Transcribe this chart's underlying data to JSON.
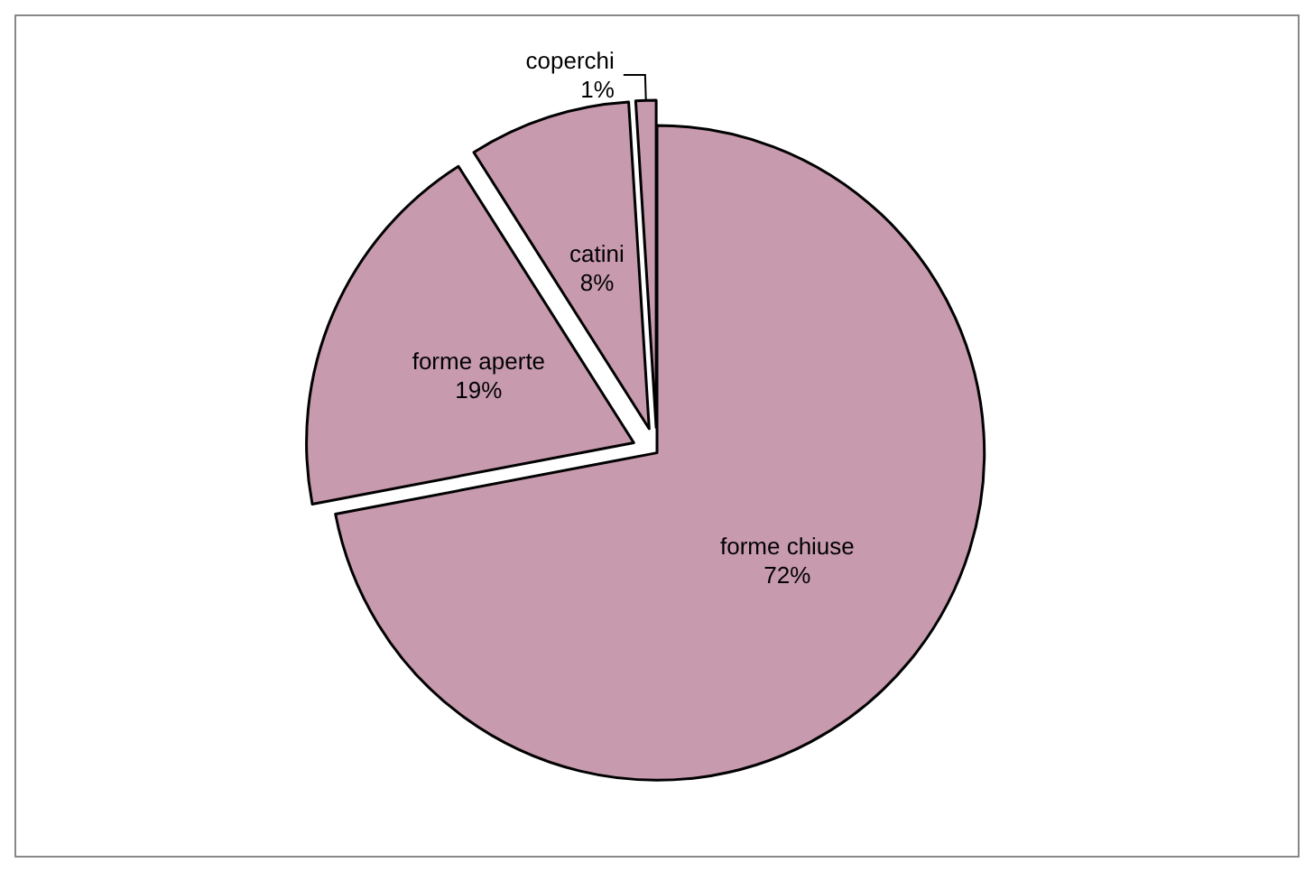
{
  "chart_data": {
    "type": "pie",
    "categories": [
      "forme chiuse",
      "forme aperte",
      "catini",
      "coperchi"
    ],
    "values": [
      72,
      19,
      8,
      1
    ],
    "value_labels": [
      "72%",
      "19%",
      "8%",
      "1%"
    ],
    "colors": [
      "#c79aad",
      "#c79aad",
      "#c79aad",
      "#c79aad"
    ],
    "legend": false
  }
}
